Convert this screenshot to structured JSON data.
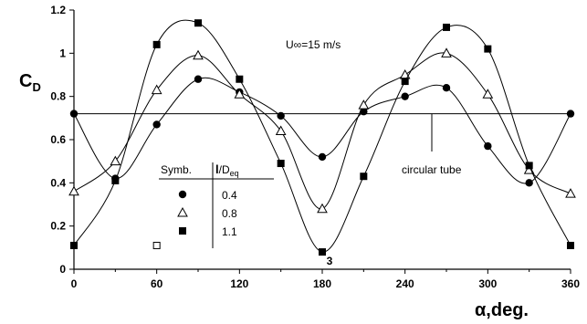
{
  "chart_data": {
    "type": "line",
    "x": [
      0,
      30,
      60,
      90,
      120,
      150,
      180,
      210,
      240,
      270,
      300,
      330,
      360
    ],
    "series": [
      {
        "name": "0.4",
        "marker": "filled-circle",
        "values": [
          0.72,
          0.42,
          0.67,
          0.88,
          0.82,
          0.71,
          0.52,
          0.73,
          0.8,
          0.84,
          0.57,
          0.4,
          0.72
        ]
      },
      {
        "name": "0.8",
        "marker": "open-triangle",
        "values": [
          0.36,
          0.5,
          0.83,
          0.99,
          0.81,
          0.64,
          0.28,
          0.76,
          0.9,
          1.0,
          0.81,
          0.46,
          0.35
        ]
      },
      {
        "name": "1.1",
        "marker": "filled-square",
        "values": [
          0.11,
          0.41,
          1.04,
          1.14,
          0.88,
          0.49,
          0.08,
          0.43,
          0.87,
          1.12,
          1.02,
          0.48,
          0.11
        ]
      }
    ],
    "reference_line": {
      "y": 0.72,
      "label": "circular tube"
    },
    "extra_point": {
      "x": 60,
      "y": 0.11,
      "marker": "open-square"
    },
    "point_annotation": {
      "x": 180,
      "y": 0.08,
      "text": "3"
    },
    "xlim": [
      0,
      360
    ],
    "ylim": [
      0,
      1.2
    ],
    "x_ticks": [
      0,
      60,
      120,
      180,
      240,
      300,
      360
    ],
    "x_tick_labels": [
      "0",
      "60",
      "120",
      "180",
      "240",
      "300",
      "360"
    ],
    "y_ticks": [
      0,
      0.2,
      0.4,
      0.6,
      0.8,
      1,
      1.2
    ],
    "y_tick_labels": [
      "0",
      "0.2",
      "0.4",
      "0.6",
      "0.8",
      "1",
      "1.2"
    ],
    "ylabel_main": "C",
    "ylabel_sub": "D",
    "xlabel": "α,deg.",
    "annotation": "U∞=15 m/s",
    "legend": {
      "header_symbol": "Symb.",
      "header_param_main": "l",
      "header_param_sep": "/D",
      "header_param_sub": "eq",
      "placement": "lower-left"
    },
    "grid": false
  }
}
